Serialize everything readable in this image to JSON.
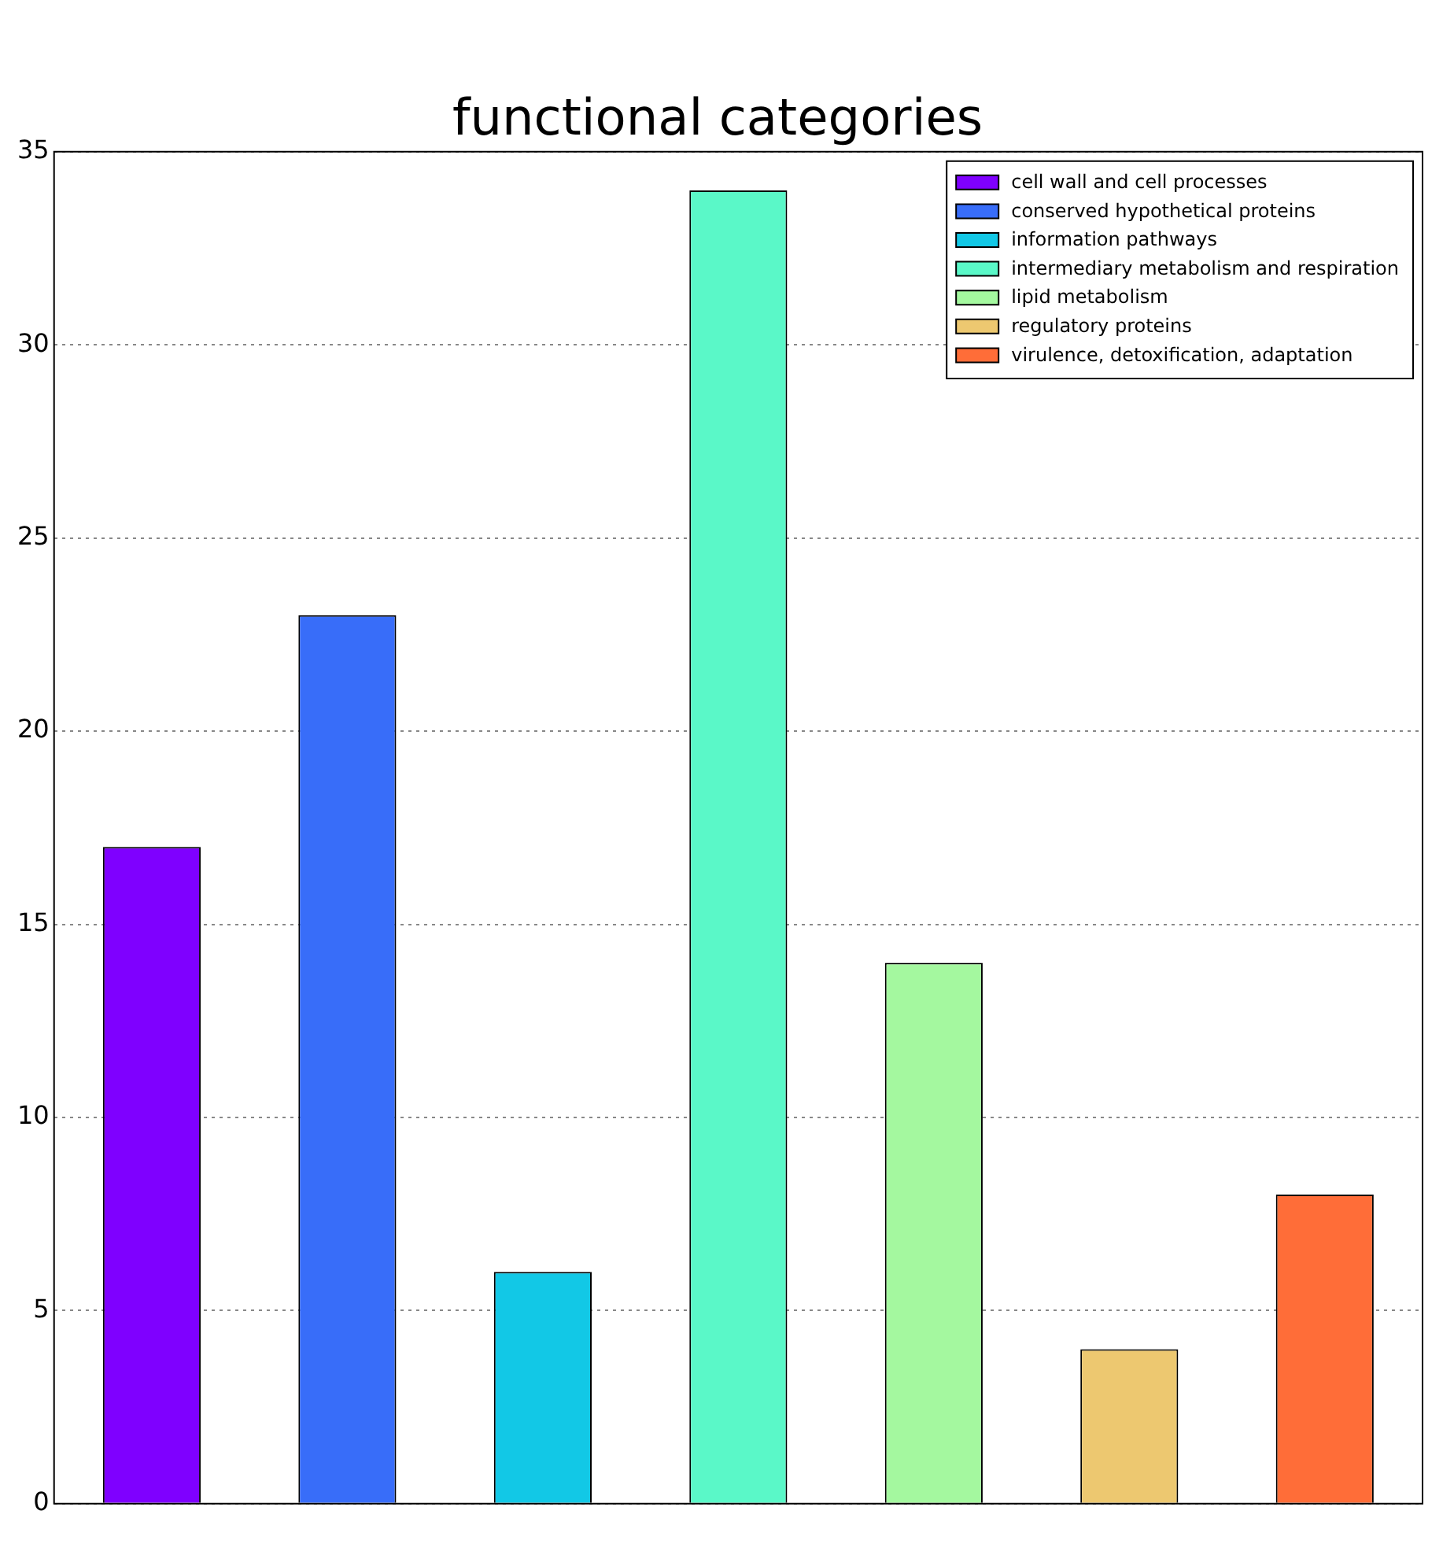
{
  "chart_data": {
    "type": "bar",
    "title": "functional categories",
    "categories": [
      null,
      null,
      null,
      null,
      null,
      null,
      null
    ],
    "series": [
      {
        "name": "cell wall and cell processes",
        "color": "#7f00ff",
        "values": [
          17,
          null,
          null,
          null,
          null,
          null,
          null
        ]
      },
      {
        "name": "conserved hypothetical proteins",
        "color": "#386df9",
        "values": [
          null,
          23,
          null,
          null,
          null,
          null,
          null
        ]
      },
      {
        "name": "information pathways",
        "color": "#12c8e6",
        "values": [
          null,
          null,
          6,
          null,
          null,
          null,
          null
        ]
      },
      {
        "name": "intermediary metabolism and respiration",
        "color": "#5af8c8",
        "values": [
          null,
          null,
          null,
          34,
          null,
          null,
          null
        ]
      },
      {
        "name": "lipid metabolism",
        "color": "#a4f89f",
        "values": [
          null,
          null,
          null,
          null,
          14,
          null,
          null
        ]
      },
      {
        "name": "regulatory proteins",
        "color": "#edc870",
        "values": [
          null,
          null,
          null,
          null,
          null,
          4,
          null
        ]
      },
      {
        "name": "virulence, detoxification, adaptation",
        "color": "#ff6d38",
        "values": [
          null,
          null,
          null,
          null,
          null,
          null,
          8
        ]
      }
    ],
    "ylim": [
      0,
      35
    ],
    "yticks": [
      0,
      5,
      10,
      15,
      20,
      25,
      30,
      35
    ],
    "grid": "y",
    "legend": "top right",
    "tick_labels": "y"
  }
}
